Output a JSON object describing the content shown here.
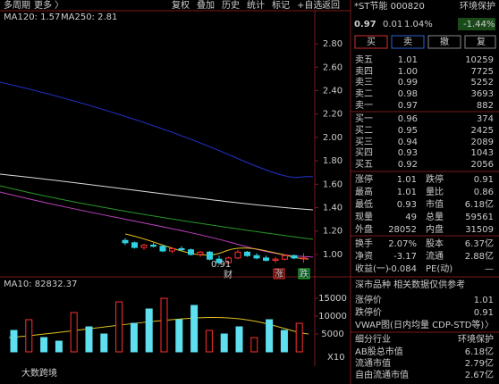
{
  "toolbar": {
    "left": [
      "多周期",
      "更多 〉"
    ],
    "buttons": [
      "复权",
      "叠加",
      "历史",
      "统计",
      "标记",
      "+自选",
      "返回"
    ]
  },
  "price_chart": {
    "ma_legend": [
      "MA120: 1.57",
      "MA250: 2.81"
    ],
    "ylim": [
      0.847,
      3.06
    ],
    "yticks": [
      {
        "value": 2.8,
        "label": "2.80"
      },
      {
        "value": 2.6,
        "label": "2.60"
      },
      {
        "value": 2.4,
        "label": "2.40"
      },
      {
        "value": 2.2,
        "label": "2.20"
      },
      {
        "value": 2.0,
        "label": "2.00"
      },
      {
        "value": 1.8,
        "label": "1.80"
      },
      {
        "value": 1.6,
        "label": "1.60"
      },
      {
        "value": 1.4,
        "label": "1.40"
      },
      {
        "value": 1.2,
        "label": "1.20"
      },
      {
        "value": 1.0,
        "label": "1.00"
      }
    ],
    "candles": [
      [
        1.12,
        1.14,
        1.08,
        1.1
      ],
      [
        1.1,
        1.11,
        1.05,
        1.06
      ],
      [
        1.06,
        1.09,
        1.04,
        1.08
      ],
      [
        1.08,
        1.1,
        1.06,
        1.07
      ],
      [
        1.07,
        1.08,
        1.02,
        1.03
      ],
      [
        1.03,
        1.06,
        1.01,
        1.05
      ],
      [
        1.05,
        1.07,
        1.03,
        1.04
      ],
      [
        1.04,
        1.05,
        0.99,
        1.0
      ],
      [
        1.0,
        1.03,
        0.98,
        1.02
      ],
      [
        1.02,
        1.03,
        0.95,
        0.96
      ],
      [
        0.96,
        0.99,
        0.91,
        0.93
      ],
      [
        0.93,
        0.98,
        0.92,
        0.97
      ],
      [
        0.97,
        1.04,
        0.96,
        1.02
      ],
      [
        1.02,
        1.03,
        0.98,
        0.99
      ],
      [
        0.99,
        1.01,
        0.96,
        0.97
      ],
      [
        0.97,
        0.99,
        0.94,
        0.95
      ],
      [
        0.95,
        0.98,
        0.93,
        0.96
      ],
      [
        0.96,
        1.0,
        0.95,
        0.99
      ],
      [
        0.99,
        1.0,
        0.96,
        0.97
      ],
      [
        0.97,
        1.01,
        0.93,
        0.97
      ]
    ],
    "low_marker": "0.91",
    "markers": [
      "财",
      "涨",
      "跌"
    ]
  },
  "volume_chart": {
    "ma_legend": "MA10: 82832.37",
    "ylim": [
      0,
      18000
    ],
    "yticks": [
      5000,
      10000,
      15000
    ],
    "unit": "X10",
    "values": [
      6000,
      9000,
      4000,
      3000,
      11000,
      7000,
      5000,
      14000,
      8000,
      12000,
      15000,
      9000,
      13000,
      6000,
      5000,
      7000,
      4000,
      9000,
      6000,
      8000
    ]
  },
  "watermark": "大数跨境",
  "quote": {
    "name": "*ST节能 000820",
    "industry": "环境保护",
    "price": "0.97",
    "change": "0.01",
    "change_pct": "1.04%",
    "sector_change": "-1.44%",
    "actions": [
      "买",
      "卖",
      "撤",
      "复"
    ]
  },
  "order_book": [
    [
      "卖五",
      "1.01",
      "10259"
    ],
    [
      "卖四",
      "1.00",
      "7725"
    ],
    [
      "卖三",
      "0.99",
      "5252"
    ],
    [
      "卖二",
      "0.98",
      "3693"
    ],
    [
      "卖一",
      "0.97",
      "882"
    ],
    [
      "买一",
      "0.96",
      "374"
    ],
    [
      "买二",
      "0.95",
      "2425"
    ],
    [
      "买三",
      "0.94",
      "2089"
    ],
    [
      "买四",
      "0.93",
      "1043"
    ],
    [
      "买五",
      "0.92",
      "2056"
    ]
  ],
  "stats": [
    [
      "涨停",
      "1.01",
      "跌停",
      "0.91"
    ],
    [
      "最高",
      "1.01",
      "量比",
      "0.86"
    ],
    [
      "最低",
      "0.93",
      "市值",
      "6.18亿"
    ],
    [
      "现量",
      "49",
      "总量",
      "59561"
    ],
    [
      "外盘",
      "28052",
      "内盘",
      "31509"
    ],
    [
      "换手",
      "2.07%",
      "股本",
      "6.37亿"
    ],
    [
      "净资",
      "-3.17",
      "流通",
      "2.88亿"
    ],
    [
      "收益(一)",
      "-0.084",
      "PE(动)",
      "—"
    ]
  ],
  "info": {
    "title": "深市品种 相关数据仅供参考",
    "rows": [
      [
        "涨停价",
        "1.01"
      ],
      [
        "跌停价",
        "0.91"
      ],
      [
        "VWAP图(日内均量 CDP-STD等)",
        "〉"
      ],
      [
        "细分行业",
        "环境保护"
      ],
      [
        "AB股总市值",
        "6.18亿"
      ],
      [
        "流通市值",
        "2.79亿"
      ],
      [
        "自由流通市值",
        "2.67亿"
      ]
    ]
  }
}
